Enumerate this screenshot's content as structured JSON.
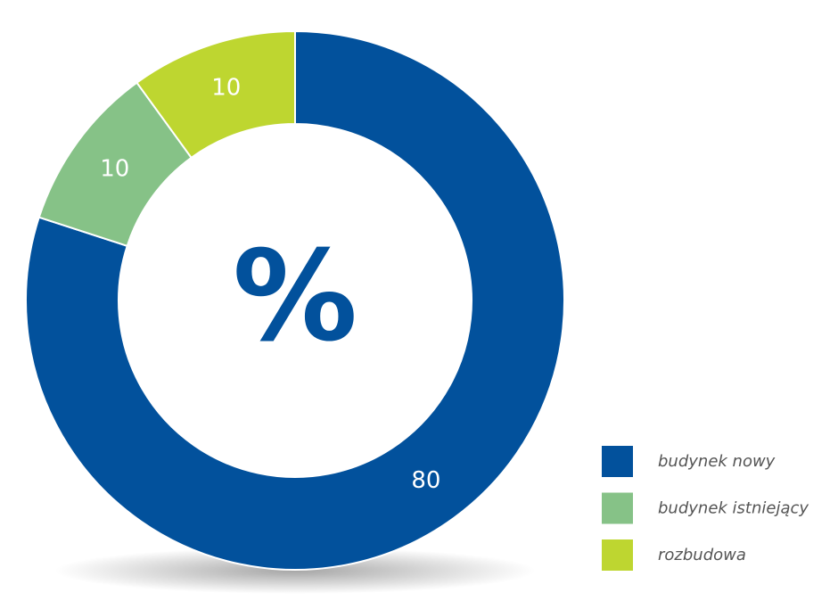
{
  "chart_data": {
    "type": "donut",
    "center_label": "%",
    "categories": [
      "budynek nowy",
      "budynek istniejący",
      "rozbudowa"
    ],
    "values": [
      80,
      10,
      10
    ],
    "colors": [
      "#02519c",
      "#86c287",
      "#bed630"
    ],
    "legend": "bottom-right"
  }
}
